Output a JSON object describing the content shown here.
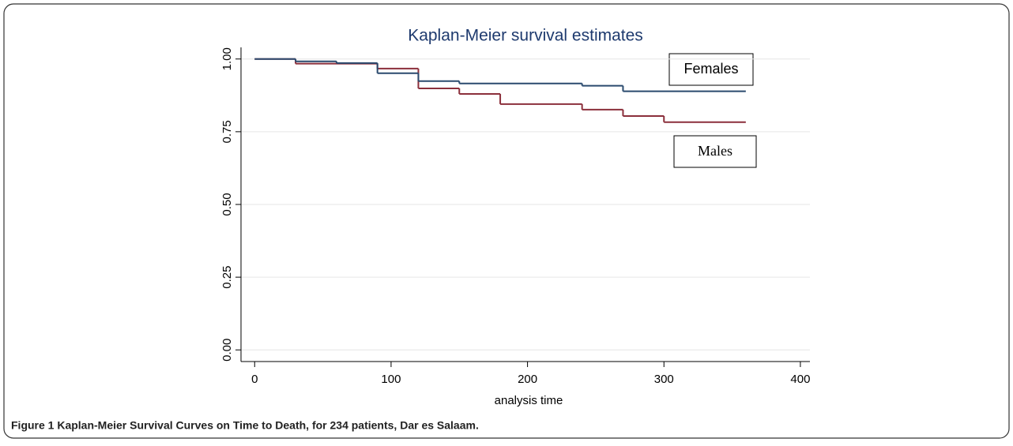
{
  "chart_data": {
    "type": "step",
    "title": "Kaplan-Meier survival estimates",
    "x_label": "analysis time",
    "caption": "Figure 1 Kaplan-Meier Survival Curves on Time to Death, for 234 patients, Dar es Salaam.",
    "series": [
      {
        "name": "Females",
        "color": "#2a4a6e",
        "x": [
          0,
          30,
          60,
          90,
          120,
          150,
          240,
          270,
          360
        ],
        "values": [
          1,
          0.992,
          0.986,
          0.951,
          0.924,
          0.916,
          0.908,
          0.889,
          0.889
        ]
      },
      {
        "name": "Males",
        "color": "#8b2f3b",
        "x": [
          0,
          30,
          90,
          120,
          150,
          180,
          240,
          270,
          300,
          360
        ],
        "values": [
          1,
          0.984,
          0.967,
          0.899,
          0.88,
          0.845,
          0.826,
          0.804,
          0.783,
          0.783
        ]
      }
    ],
    "xlim": [
      -10,
      407
    ],
    "xticks": [
      0,
      100,
      200,
      300,
      400
    ],
    "ylim": [
      -0.04,
      1.04
    ],
    "yticks": [
      {
        "value": 0,
        "label": "0.00"
      },
      {
        "value": 0.25,
        "label": "0.25"
      },
      {
        "value": 0.5,
        "label": "0.50"
      },
      {
        "value": 0.75,
        "label": "0.75"
      },
      {
        "value": 1,
        "label": "1.00"
      }
    ],
    "grid": true
  }
}
